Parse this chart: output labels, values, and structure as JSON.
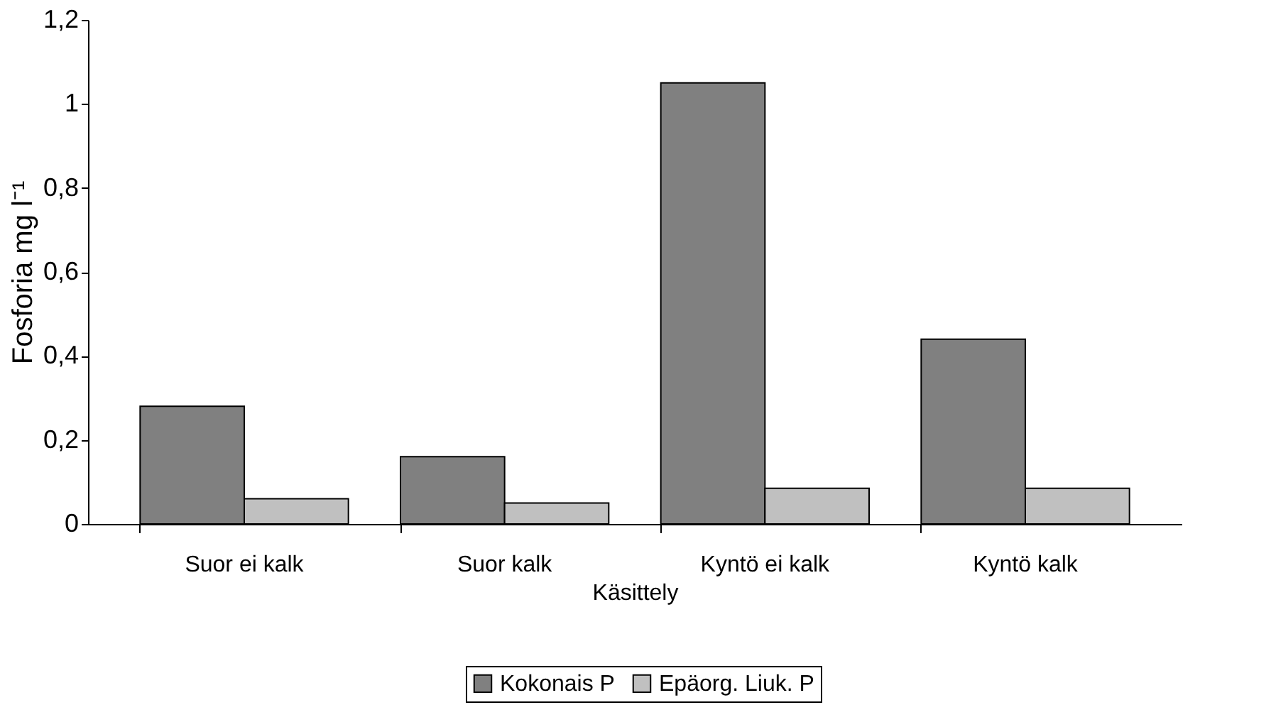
{
  "chart_data": {
    "type": "bar",
    "xlabel": "Käsittely",
    "ylabel": "Fosforia mg l⁻¹",
    "categories": [
      "Suor ei kalk",
      "Suor kalk",
      "Kyntö ei kalk",
      "Kyntö kalk"
    ],
    "series": [
      {
        "name": "Kokonais P",
        "color": "#808080",
        "values": [
          0.28,
          0.16,
          1.05,
          0.44
        ]
      },
      {
        "name": "Epäorg. Liuk. P",
        "color": "#c0c0c0",
        "values": [
          0.06,
          0.05,
          0.085,
          0.085
        ]
      }
    ],
    "ylim": [
      0,
      1.2
    ],
    "yticks": [
      0,
      {
        "value": 0.2,
        "label": "0,2"
      },
      {
        "value": 0.4,
        "label": "0,4"
      },
      {
        "value": 0.6,
        "label": "0,6"
      },
      {
        "value": 0.8,
        "label": "0,8"
      },
      1,
      {
        "value": 1.2,
        "label": "1,2"
      }
    ],
    "grid": false,
    "legend": "bottom"
  }
}
